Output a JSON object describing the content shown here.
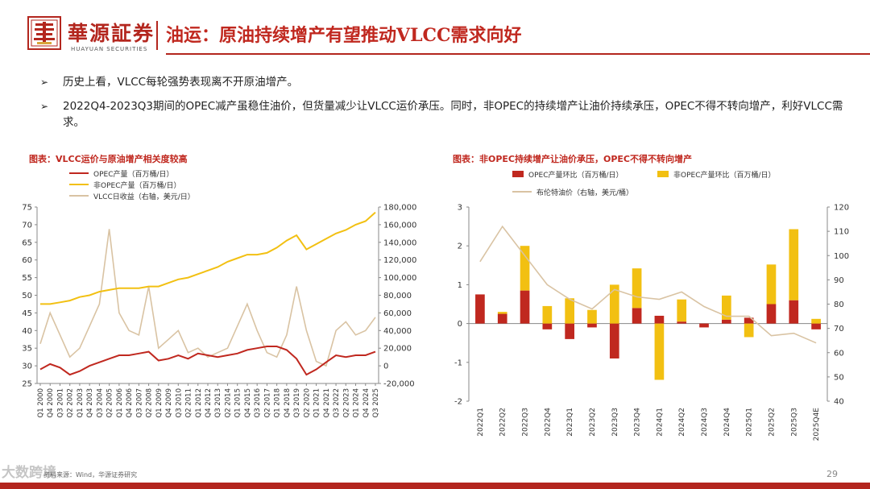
{
  "header": {
    "brand_cn": "華源証券",
    "brand_en": "HUAYUAN SECURITIES",
    "title": "油运：原油持续增产有望推动VLCC需求向好"
  },
  "bullets": [
    "历史上看，VLCC每轮强势表现离不开原油增产。",
    "2022Q4-2023Q3期间的OPEC减产虽稳住油价，但货量减少让VLCC运价承压。同时，非OPEC的持续增产让油价持续承压，OPEC不得不转向增产，利好VLCC需求。"
  ],
  "left_chart_title": "图表：VLCC运价与原油增产相关度较高",
  "right_chart_title": "图表：非OPEC持续增产让油价承压，OPEC不得不转向增产",
  "source": "资料来源：Wind，华源证券研究",
  "page_number": "29",
  "watermark": "大数跨境",
  "colors": {
    "red": "#c0281f",
    "gold": "#f2c012",
    "tan": "#d9c3a3",
    "brown": "#b3261e"
  },
  "chart_data": [
    {
      "type": "line",
      "title": "图表：VLCC运价与原油增产相关度较高",
      "legend": [
        "OPEC产量（百万桶/日）",
        "非OPEC产量（百万桶/日）",
        "VLCC日收益（右轴，美元/日）"
      ],
      "ylim": [
        25,
        75
      ],
      "yticks": [
        25,
        30,
        35,
        40,
        45,
        50,
        55,
        60,
        65,
        70,
        75
      ],
      "y2lim": [
        -20000,
        180000
      ],
      "y2ticks": [
        "-20,000",
        "0",
        "20,000",
        "40,000",
        "60,000",
        "80,000",
        "100,000",
        "120,000",
        "140,000",
        "160,000",
        "180,000"
      ],
      "x_labels": [
        "2000 Q1",
        "2000 Q4",
        "2001 Q3",
        "2002 Q2",
        "2003 Q1",
        "2003 Q4",
        "2004 Q3",
        "2005 Q2",
        "2006 Q1",
        "2006 Q4",
        "2007 Q3",
        "2008 Q2",
        "2009 Q1",
        "2009 Q4",
        "2010 Q3",
        "2011 Q2",
        "2012 Q1",
        "2012 Q4",
        "2013 Q3",
        "2014 Q2",
        "2015 Q1",
        "2015 Q4",
        "2016 Q3",
        "2017 Q2",
        "2018 Q1",
        "2018 Q4",
        "2019 Q3",
        "2020 Q2",
        "2021 Q1",
        "2021 Q4",
        "2022 Q3",
        "2023 Q2",
        "2024 Q1",
        "2024 Q4",
        "2025 Q3"
      ],
      "series": [
        {
          "name": "OPEC产量（百万桶/日）",
          "axis": "left",
          "values": [
            29,
            30.5,
            29.5,
            27.5,
            28.5,
            30,
            31,
            32,
            33,
            33,
            33.5,
            34,
            31.5,
            32,
            33,
            32,
            33.5,
            33,
            32.5,
            33,
            33.5,
            34.5,
            35,
            35.5,
            35.5,
            34.5,
            32,
            27.5,
            29,
            31,
            33,
            32.5,
            33,
            33,
            34
          ]
        },
        {
          "name": "非OPEC产量（百万桶/日）",
          "axis": "left",
          "values": [
            47.5,
            47.5,
            48,
            48.5,
            49.5,
            50,
            51,
            51.5,
            52,
            52,
            52,
            52.5,
            52.5,
            53.5,
            54.5,
            55,
            56,
            57,
            58,
            59.5,
            60.5,
            61.5,
            61.5,
            62,
            63.5,
            65.5,
            67,
            63,
            64.5,
            66,
            67.5,
            68.5,
            70,
            71,
            73.5
          ]
        },
        {
          "name": "VLCC日收益（右轴，美元/日）",
          "axis": "right",
          "values": [
            25000,
            60000,
            35000,
            10000,
            20000,
            45000,
            70000,
            155000,
            60000,
            40000,
            35000,
            90000,
            20000,
            30000,
            40000,
            15000,
            20000,
            10000,
            15000,
            20000,
            45000,
            70000,
            40000,
            15000,
            10000,
            35000,
            90000,
            40000,
            5000,
            0,
            40000,
            50000,
            35000,
            40000,
            55000
          ]
        }
      ]
    },
    {
      "type": "bar",
      "title": "图表：非OPEC持续增产让油价承压，OPEC不得不转向增产",
      "categories": [
        "2022Q1",
        "2022Q2",
        "2022Q3",
        "2022Q4",
        "2023Q1",
        "2023Q2",
        "2023Q3",
        "2023Q4",
        "2024Q1",
        "2024Q2",
        "2024Q3",
        "2024Q4",
        "2025Q1",
        "2025Q2",
        "2025Q3",
        "2025Q4E"
      ],
      "legend": [
        "OPEC产量环比（百万桶/日）",
        "非OPEC产量环比（百万桶/日）",
        "布伦特油价（右轴，美元/桶）"
      ],
      "ylim": [
        -2,
        3
      ],
      "yticks": [
        -2,
        -1,
        0,
        1,
        2,
        3
      ],
      "y2lim": [
        40,
        120
      ],
      "y2ticks": [
        40,
        50,
        60,
        70,
        80,
        90,
        100,
        110,
        120
      ],
      "series": [
        {
          "name": "OPEC产量环比（百万桶/日）",
          "values": [
            0.75,
            0.25,
            0.85,
            -0.15,
            -0.4,
            -0.1,
            -0.9,
            0.4,
            0.2,
            0.05,
            -0.1,
            0.1,
            0.15,
            0.5,
            0.6,
            -0.15
          ]
        },
        {
          "name": "非OPEC产量环比（百万桶/日）",
          "values": [
            0,
            0.05,
            1.15,
            0.45,
            0.65,
            0.35,
            1.0,
            1.02,
            -1.45,
            0.57,
            0,
            0.62,
            -0.35,
            1.02,
            1.83,
            0.12
          ]
        },
        {
          "name": "布伦特油价（右轴，美元/桶）",
          "axis": "right",
          "values": [
            97.5,
            112,
            100,
            88,
            82,
            78,
            86,
            83,
            82,
            85,
            79,
            75,
            75,
            67,
            68,
            64
          ]
        }
      ]
    }
  ]
}
